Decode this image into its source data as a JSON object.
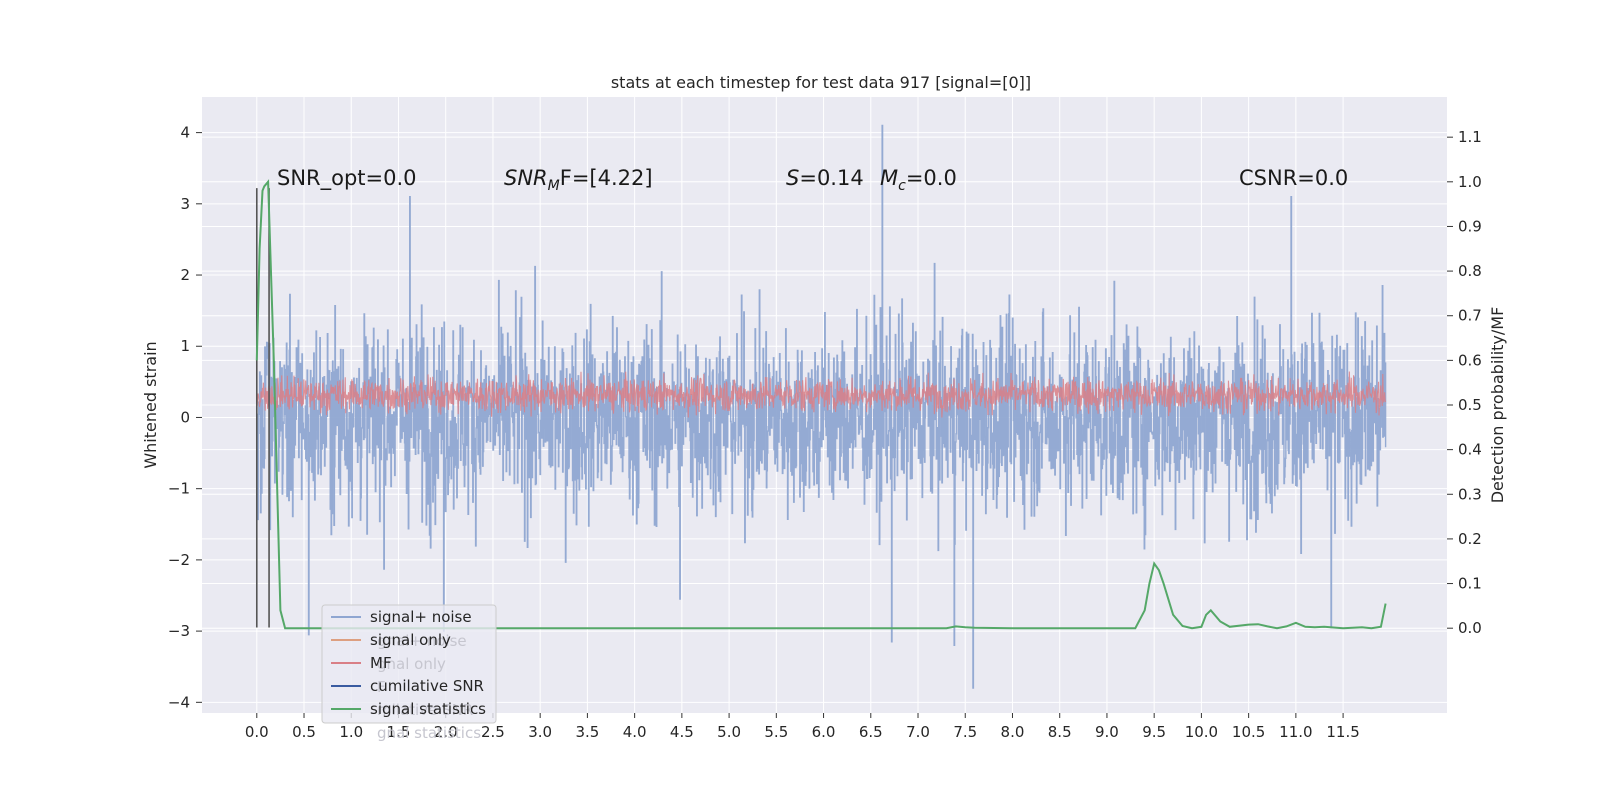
{
  "chart_data": {
    "type": "line",
    "title": "stats at each timestep for test data 917 [signal=[0]]",
    "ylabel": "Whitened strain",
    "y2label": "Detection probability/MF",
    "xlim": [
      -0.58,
      12.6
    ],
    "ylim": [
      -4.15,
      4.5
    ],
    "y2lim": [
      -0.19,
      1.19
    ],
    "xticks": [
      "0.0",
      "0.5",
      "1.0",
      "1.5",
      "2.0",
      "2.5",
      "3.0",
      "3.5",
      "4.0",
      "4.5",
      "5.0",
      "5.5",
      "6.0",
      "6.5",
      "7.0",
      "7.5",
      "8.0",
      "8.5",
      "9.0",
      "9.5",
      "10.0",
      "10.5",
      "11.0",
      "11.5"
    ],
    "yticks": [
      "4",
      "3",
      "2",
      "1",
      "0",
      "−1",
      "−2",
      "−3",
      "−4"
    ],
    "y2ticks": [
      "1.1",
      "1.0",
      "0.9",
      "0.8",
      "0.7",
      "0.6",
      "0.5",
      "0.4",
      "0.3",
      "0.2",
      "0.1",
      "0.0"
    ],
    "grid": true,
    "legend_position": "lower-left",
    "annotations": {
      "snr_opt": "SNR_opt=0.0",
      "snr_mf_name": "SNR",
      "snr_mf_sub": "M",
      "snr_mf_tail": "F=[4.22]",
      "s_name": "S",
      "s_val": "=0.14",
      "mc_name": "M",
      "mc_sub": "c",
      "mc_val": "=0.0",
      "csnr": "CSNR=0.0"
    },
    "legend": [
      {
        "label": "signal+ noise",
        "color": "#8fa6d1"
      },
      {
        "label": "signal only",
        "color": "#dd9f80"
      },
      {
        "label": "MF",
        "color": "#d97f86"
      },
      {
        "label": "cumilative SNR",
        "color": "#3a5ba0"
      },
      {
        "label": "signal statistics",
        "color": "#55a868"
      }
    ],
    "legend_ghosts": [
      "gnal+ noise",
      "gnal only",
      "F",
      "milative SNR",
      "gnal statistics"
    ],
    "series": [
      {
        "name": "signal statistics",
        "axis": "right",
        "color": "#55a868",
        "x": [
          0.0,
          0.03,
          0.06,
          0.08,
          0.12,
          0.18,
          0.25,
          0.3,
          0.4,
          1.0,
          3.0,
          5.0,
          7.0,
          7.3,
          7.4,
          7.5,
          7.6,
          8.0,
          9.0,
          9.3,
          9.4,
          9.45,
          9.5,
          9.55,
          9.6,
          9.7,
          9.8,
          9.9,
          10.0,
          10.05,
          10.1,
          10.2,
          10.3,
          10.5,
          10.6,
          10.7,
          10.8,
          10.9,
          11.0,
          11.1,
          11.2,
          11.3,
          11.5,
          11.7,
          11.8,
          11.9,
          11.95
        ],
        "y": [
          0.6,
          0.85,
          0.98,
          0.99,
          1.0,
          0.6,
          0.04,
          0.0,
          0.0,
          0.0,
          0.0,
          0.0,
          0.0,
          0.0,
          0.004,
          0.002,
          0.001,
          0.0,
          0.0,
          0.0,
          0.04,
          0.1,
          0.145,
          0.13,
          0.1,
          0.03,
          0.005,
          0.0,
          0.003,
          0.03,
          0.04,
          0.015,
          0.003,
          0.008,
          0.009,
          0.004,
          0.0,
          0.004,
          0.012,
          0.003,
          0.002,
          0.003,
          0.0,
          0.002,
          0.0,
          0.003,
          0.055
        ]
      },
      {
        "name": "signal+ noise",
        "axis": "left",
        "color": "#8fa6d1",
        "x": [
          0.0,
          11.95
        ],
        "y_range": [
          -3.8,
          4.1
        ],
        "samples": 2400,
        "spikes": [
          [
            6.62,
            4.1
          ],
          [
            7.58,
            -3.8
          ],
          [
            1.62,
            3.1
          ],
          [
            10.95,
            3.1
          ],
          [
            6.72,
            -3.15
          ],
          [
            7.38,
            -3.2
          ],
          [
            0.55,
            -3.05
          ],
          [
            11.37,
            -2.95
          ],
          [
            4.48,
            -2.55
          ],
          [
            1.98,
            -3.0
          ]
        ]
      },
      {
        "name": "MF",
        "axis": "left",
        "color": "#d97f86",
        "x": [
          0.0,
          11.95
        ],
        "y_range": [
          0.0,
          0.85
        ],
        "samples": 2400
      }
    ],
    "markers": {
      "vlines": [
        {
          "x": 0.0,
          "ymin": -2.95,
          "ymax": 3.22,
          "color": "#555555"
        },
        {
          "x": 0.13,
          "ymin": -2.95,
          "ymax": 3.22,
          "color": "#555555"
        }
      ]
    }
  }
}
